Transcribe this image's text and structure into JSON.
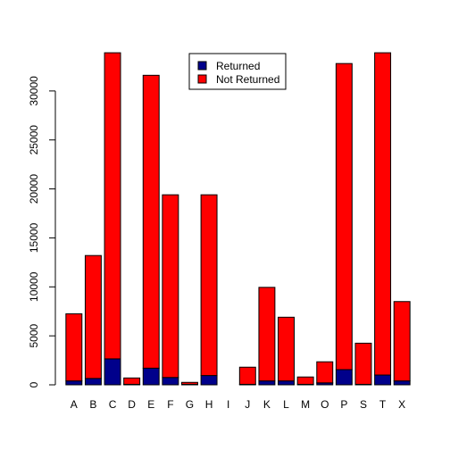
{
  "chart_data": {
    "type": "bar",
    "stacked": true,
    "title": "",
    "xlabel": "",
    "ylabel": "",
    "categories": [
      "A",
      "B",
      "C",
      "D",
      "E",
      "F",
      "G",
      "H",
      "I",
      "J",
      "K",
      "L",
      "M",
      "O",
      "P",
      "S",
      "T",
      "X"
    ],
    "series": [
      {
        "name": "Returned",
        "color": "#00008B",
        "values": [
          400,
          650,
          2650,
          50,
          1700,
          750,
          50,
          950,
          0,
          50,
          400,
          400,
          50,
          200,
          1550,
          50,
          1000,
          400
        ]
      },
      {
        "name": "Not Returned",
        "color": "#FF0000",
        "values": [
          6850,
          12550,
          31250,
          650,
          29900,
          18650,
          200,
          18450,
          0,
          1750,
          9550,
          6500,
          750,
          2150,
          31250,
          4200,
          32900,
          8100
        ]
      }
    ],
    "ylim": [
      0,
      34000
    ],
    "yticks": [
      0,
      5000,
      10000,
      15000,
      20000,
      25000,
      30000
    ],
    "grid": false,
    "legend_position": "top-right"
  }
}
